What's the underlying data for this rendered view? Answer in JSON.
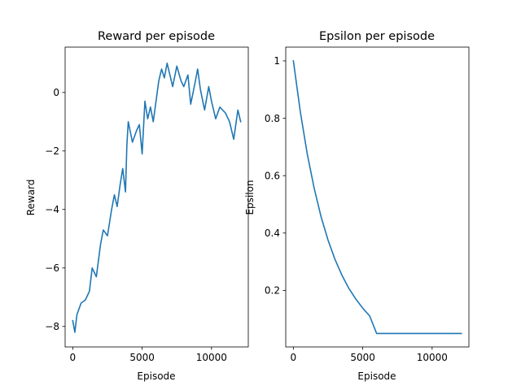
{
  "chart_data": [
    {
      "type": "line",
      "title": "Reward per episode",
      "xlabel": "Episode",
      "ylabel": "Reward",
      "xlim": [
        -550,
        12650
      ],
      "ylim": [
        -8.7,
        1.55
      ],
      "xticks": [
        0,
        5000,
        10000
      ],
      "yticks": [
        -8,
        -6,
        -4,
        -2,
        0
      ],
      "grid": false,
      "series": [
        {
          "color": "#1f77b4",
          "x": [
            0,
            150,
            300,
            600,
            900,
            1200,
            1400,
            1700,
            2000,
            2200,
            2500,
            2800,
            3000,
            3200,
            3400,
            3600,
            3800,
            3900,
            4000,
            4300,
            4600,
            4800,
            5000,
            5200,
            5400,
            5600,
            5800,
            6000,
            6200,
            6400,
            6600,
            6800,
            7000,
            7200,
            7500,
            7800,
            8000,
            8300,
            8500,
            8800,
            9000,
            9200,
            9500,
            9800,
            10000,
            10300,
            10600,
            11000,
            11300,
            11600,
            11900,
            12100
          ],
          "y": [
            -7.8,
            -8.2,
            -7.6,
            -7.2,
            -7.1,
            -6.8,
            -6.0,
            -6.3,
            -5.2,
            -4.7,
            -4.9,
            -4.0,
            -3.5,
            -3.9,
            -3.2,
            -2.6,
            -3.4,
            -1.8,
            -1.0,
            -1.7,
            -1.3,
            -1.1,
            -2.1,
            -0.3,
            -0.9,
            -0.5,
            -1.0,
            -0.3,
            0.4,
            0.8,
            0.5,
            1.0,
            0.6,
            0.2,
            0.9,
            0.4,
            0.2,
            0.6,
            -0.4,
            0.3,
            0.8,
            0.1,
            -0.6,
            0.2,
            -0.3,
            -0.9,
            -0.5,
            -0.7,
            -1.0,
            -1.6,
            -0.6,
            -1.0
          ]
        }
      ]
    },
    {
      "type": "line",
      "title": "Epsilon per episode",
      "xlabel": "Episode",
      "ylabel": "Epsilon",
      "xlim": [
        -550,
        12650
      ],
      "ylim": [
        0.003,
        1.048
      ],
      "xticks": [
        0,
        5000,
        10000
      ],
      "yticks": [
        0.2,
        0.4,
        0.6,
        0.8,
        1.0
      ],
      "grid": false,
      "series": [
        {
          "color": "#1f77b4",
          "x": [
            0,
            500,
            1000,
            1500,
            2000,
            2500,
            3000,
            3500,
            4000,
            4500,
            5000,
            5500,
            6000,
            7000,
            8000,
            9000,
            10000,
            11000,
            12100
          ],
          "y": [
            1.0,
            0.823,
            0.676,
            0.556,
            0.456,
            0.375,
            0.308,
            0.253,
            0.207,
            0.17,
            0.138,
            0.111,
            0.05,
            0.05,
            0.05,
            0.05,
            0.05,
            0.05,
            0.05
          ]
        }
      ]
    }
  ]
}
